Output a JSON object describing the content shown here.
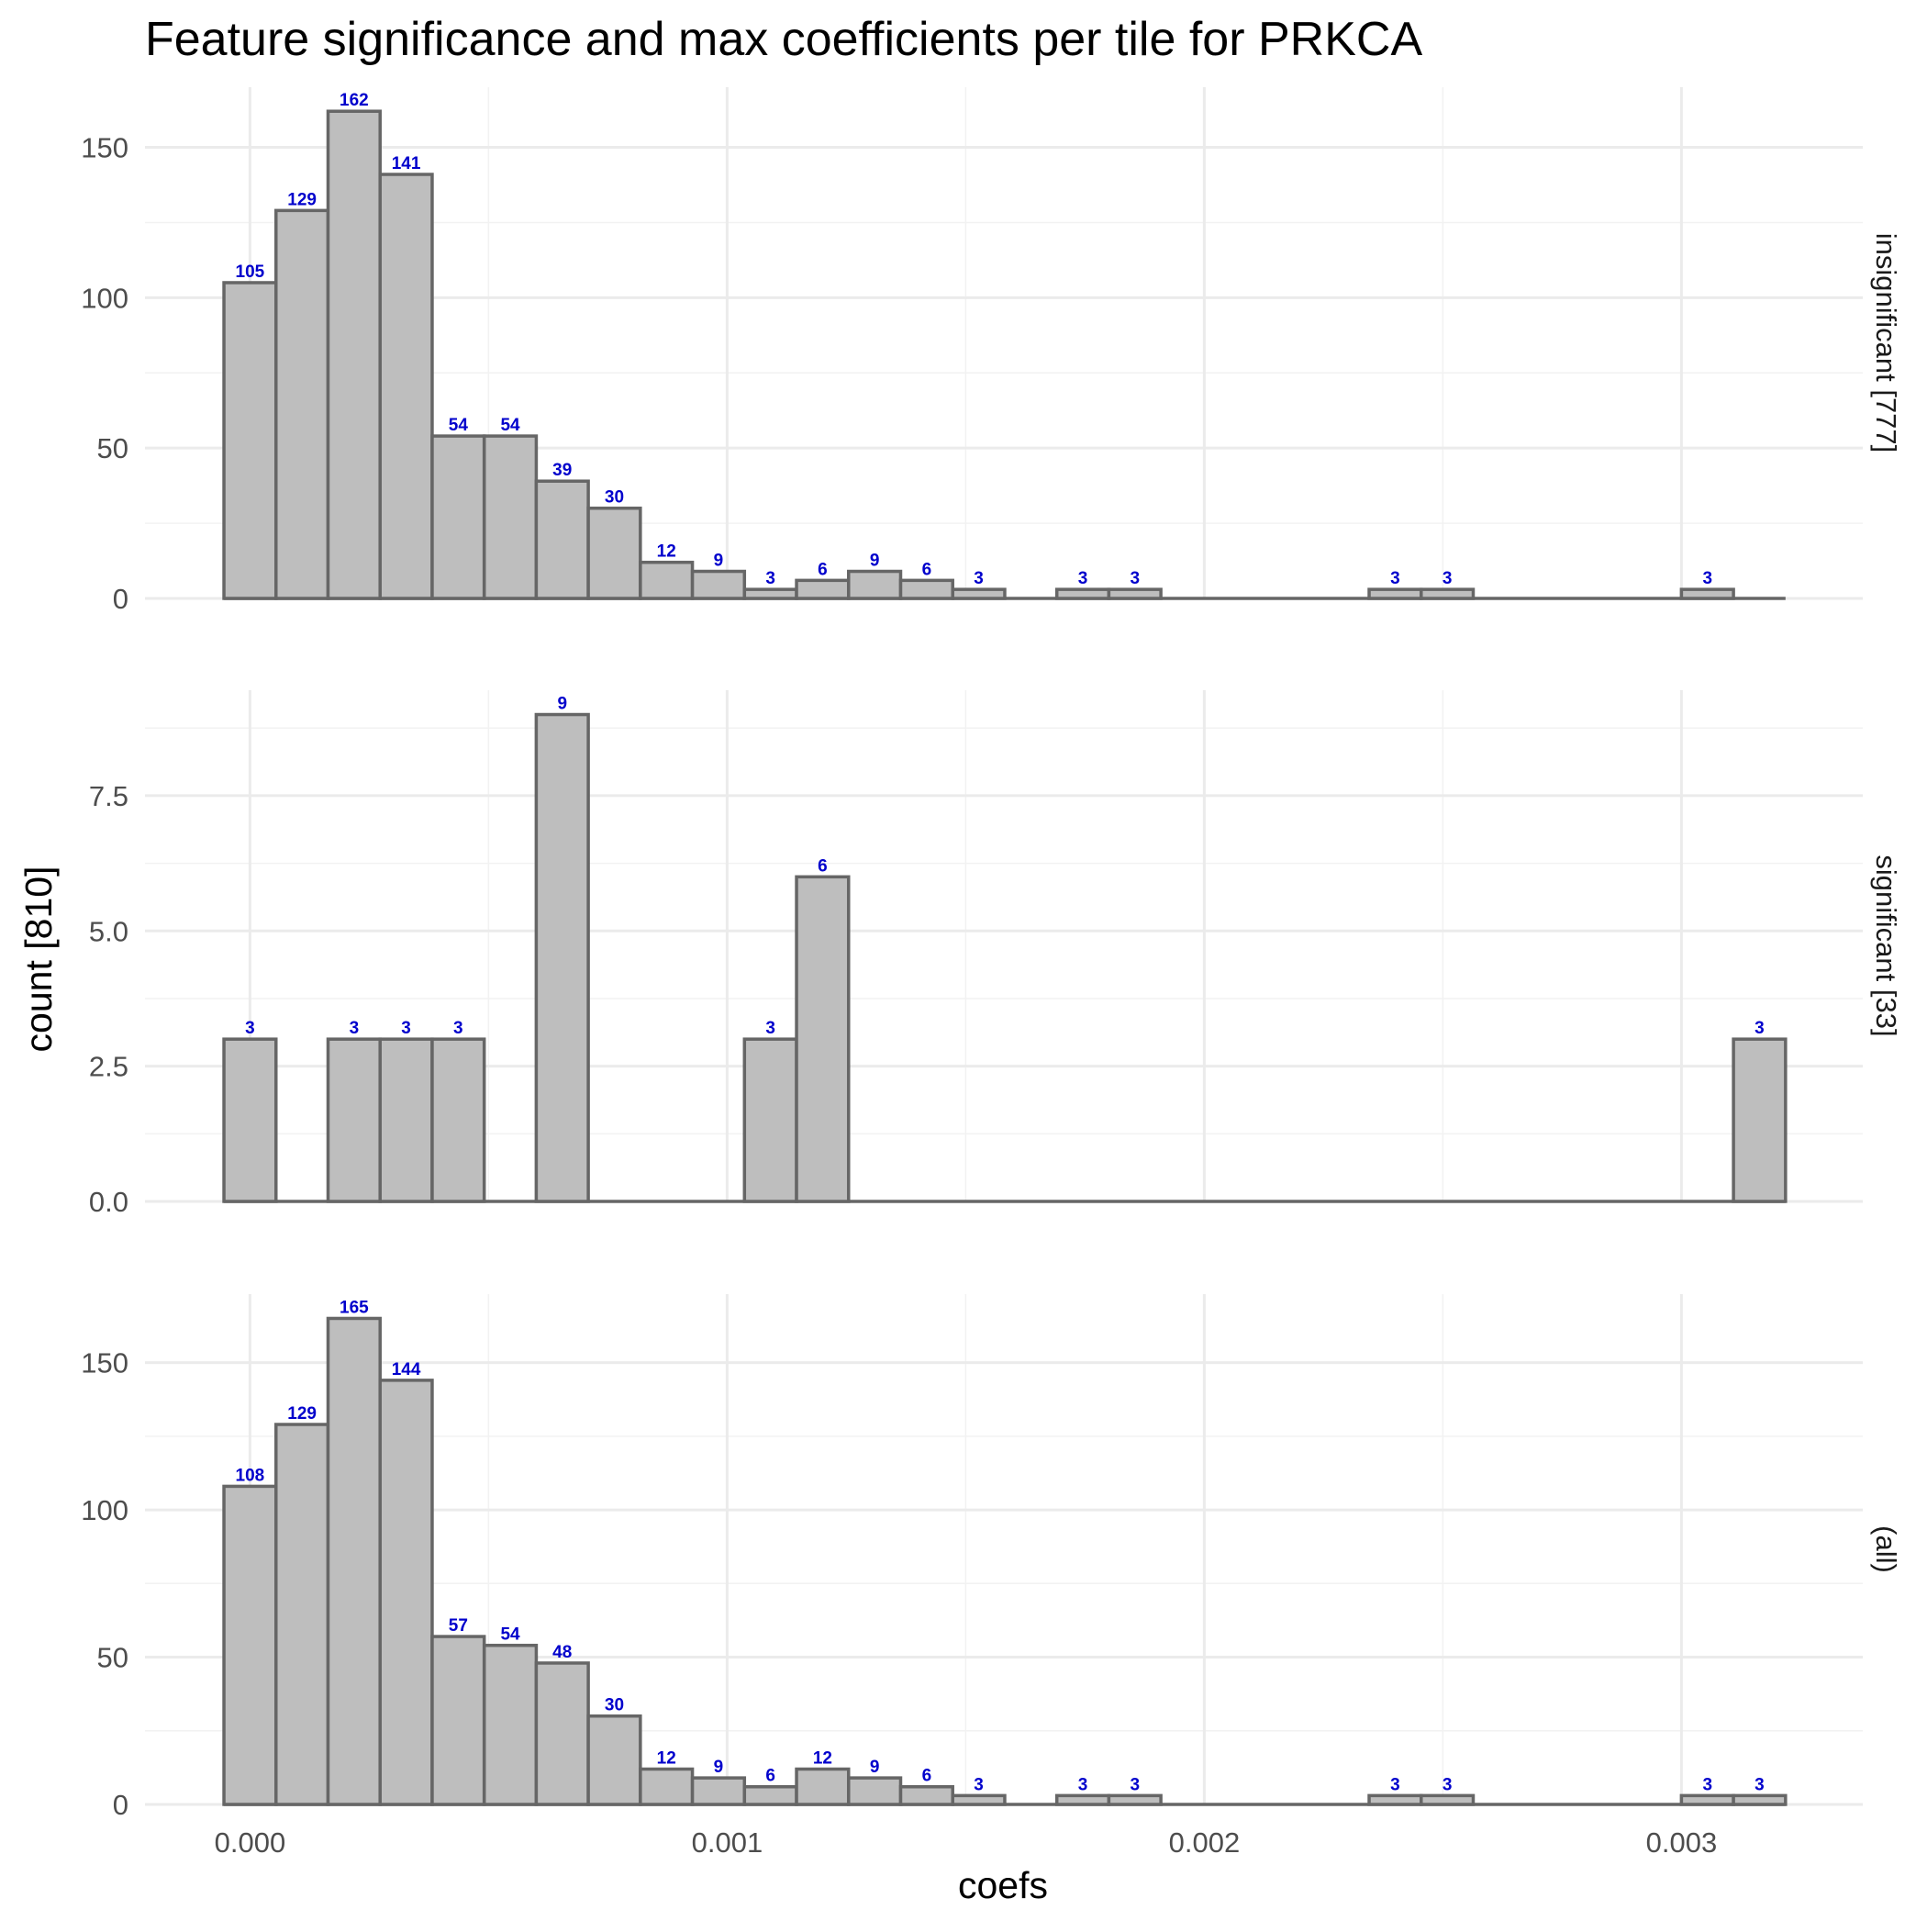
{
  "chart_data": {
    "type": "bar",
    "title": "Feature significance and max coefficients per tile for PRKCA",
    "xlabel": "coefs",
    "ylabel": "count [810]",
    "xlim": [
      -0.00022,
      0.00338
    ],
    "x_ticks": [
      0.0,
      0.001,
      0.002,
      0.003
    ],
    "x_tick_labels": [
      "0.000",
      "0.001",
      "0.002",
      "0.003"
    ],
    "bin_width": 0.00010909,
    "bin_centers": [
      0.0,
      0.0001091,
      0.0002182,
      0.0003273,
      0.0004364,
      0.0005455,
      0.0006545,
      0.0007636,
      0.0008727,
      0.0009818,
      0.0010909,
      0.0012,
      0.0013091,
      0.0014182,
      0.0015273,
      0.0016364,
      0.0017455,
      0.0018545,
      0.0019636,
      0.0020727,
      0.0021818,
      0.0022909,
      0.0024,
      0.0025091,
      0.0026182,
      0.0027273,
      0.0028364,
      0.0029455,
      0.0030545,
      0.0031636
    ],
    "grid": true,
    "panels": [
      {
        "strip": "insignificant [777]",
        "ylim": [
          0,
          170
        ],
        "y_ticks": [
          0,
          50,
          100,
          150
        ],
        "y_tick_labels": [
          "0",
          "50",
          "100",
          "150"
        ],
        "values": [
          105,
          129,
          162,
          141,
          54,
          54,
          39,
          30,
          12,
          9,
          3,
          6,
          9,
          6,
          3,
          0,
          3,
          3,
          0,
          0,
          0,
          0,
          3,
          3,
          0,
          0,
          0,
          0,
          3,
          0
        ],
        "labels": [
          "105",
          "129",
          "162",
          "141",
          "54",
          "54",
          "39",
          "30",
          "12",
          "9",
          "3",
          "6",
          "9",
          "6",
          "3",
          "",
          "3",
          "3",
          "",
          "",
          "",
          "",
          "3",
          "3",
          "",
          "",
          "",
          "",
          "3",
          ""
        ]
      },
      {
        "strip": "significant [33]",
        "ylim": [
          0,
          9.45
        ],
        "y_ticks": [
          0,
          2.5,
          5,
          7.5
        ],
        "y_tick_labels": [
          "0.0",
          "2.5",
          "5.0",
          "7.5"
        ],
        "values": [
          3,
          0,
          3,
          3,
          3,
          0,
          9,
          0,
          0,
          0,
          3,
          6,
          0,
          0,
          0,
          0,
          0,
          0,
          0,
          0,
          0,
          0,
          0,
          0,
          0,
          0,
          0,
          0,
          0,
          3
        ],
        "labels": [
          "3",
          "",
          "3",
          "3",
          "3",
          "",
          "9",
          "",
          "",
          "",
          "3",
          "6",
          "",
          "",
          "",
          "",
          "",
          "",
          "",
          "",
          "",
          "",
          "",
          "",
          "",
          "",
          "",
          "",
          "",
          "3"
        ]
      },
      {
        "strip": "(all)",
        "ylim": [
          0,
          173.25
        ],
        "y_ticks": [
          0,
          50,
          100,
          150
        ],
        "y_tick_labels": [
          "0",
          "50",
          "100",
          "150"
        ],
        "values": [
          108,
          129,
          165,
          144,
          57,
          54,
          48,
          30,
          12,
          9,
          6,
          12,
          9,
          6,
          3,
          0,
          3,
          3,
          0,
          0,
          0,
          0,
          3,
          3,
          0,
          0,
          0,
          0,
          3,
          3
        ],
        "labels": [
          "108",
          "129",
          "165",
          "144",
          "57",
          "54",
          "48",
          "30",
          "12",
          "9",
          "6",
          "12",
          "9",
          "6",
          "3",
          "",
          "3",
          "3",
          "",
          "",
          "",
          "",
          "3",
          "3",
          "",
          "",
          "",
          "",
          "3",
          "3"
        ]
      }
    ]
  }
}
